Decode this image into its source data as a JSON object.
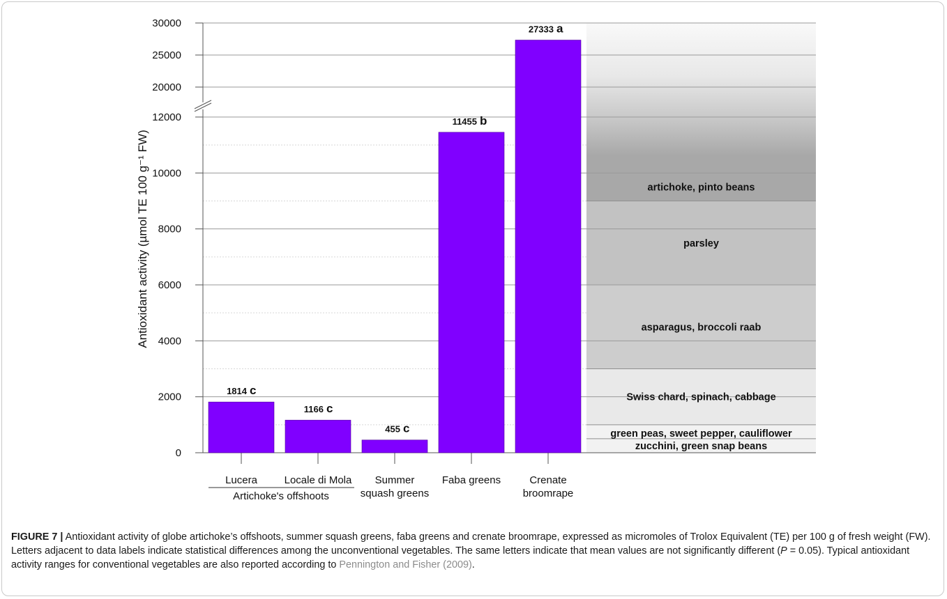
{
  "chart_data": {
    "type": "bar",
    "categories": [
      "Lucera",
      "Locale di Mola",
      "Summer squash greens",
      "Faba greens",
      "Crenate broomrape"
    ],
    "category_labels": [
      [
        "Lucera"
      ],
      [
        "Locale di Mola"
      ],
      [
        "Summer",
        "squash greens"
      ],
      [
        "Faba greens"
      ],
      [
        "Crenate",
        "broomrape"
      ]
    ],
    "group_label": "Artichoke's offshoots",
    "values": [
      1814,
      1166,
      455,
      11455,
      27333
    ],
    "data_labels": [
      "1814",
      "1166",
      "455",
      "11455",
      "27333"
    ],
    "significance": [
      "c",
      "c",
      "c",
      "b",
      "a"
    ],
    "bar_color": "#8000ff",
    "ylabel": "Antioxidant activity (µmol TE 100 g⁻¹ FW)",
    "ylim": [
      0,
      30000
    ],
    "axis_break": [
      12000,
      20000
    ],
    "y_ticks_lower": [
      "0",
      "2000",
      "4000",
      "6000",
      "8000",
      "10000",
      "12000"
    ],
    "y_ticks_upper": [
      "20000",
      "25000",
      "30000"
    ],
    "reference_ranges": [
      {
        "label": "zucchini, green snap beans",
        "from": 0,
        "to": 500,
        "color": "#f2f2f2"
      },
      {
        "label": "green peas, sweet pepper, cauliflower",
        "from": 500,
        "to": 1000,
        "color": "#f2f2f2"
      },
      {
        "label": "Swiss chard, spinach, cabbage",
        "from": 1000,
        "to": 3000,
        "color": "#e9e9e9"
      },
      {
        "label": "asparagus, broccoli raab",
        "from": 3000,
        "to": 6000,
        "color": "#cdcdcd"
      },
      {
        "label": "parsley",
        "from": 6000,
        "to": 9000,
        "color": "#c2c2c2"
      },
      {
        "label": "artichoke, pinto beans",
        "from": 9000,
        "to": 30000,
        "color": "#a8a8a8"
      }
    ]
  },
  "caption": {
    "figure_label": "FIGURE 7 |",
    "text_before_p": " Antioxidant activity of globe artichoke’s offshoots, summer squash greens, faba greens and crenate broomrape, expressed as micromoles of Trolox Equivalent (TE) per 100 g of fresh weight (FW). Letters adjacent to data labels indicate statistical differences among the unconventional vegetables. The same letters indicate that mean values are not significantly different (",
    "p_symbol": "P",
    "text_after_p": " = 0.05). Typical antioxidant activity ranges for conventional vegetables are also reported according to ",
    "reference": "Pennington and Fisher (2009)",
    "end": "."
  }
}
